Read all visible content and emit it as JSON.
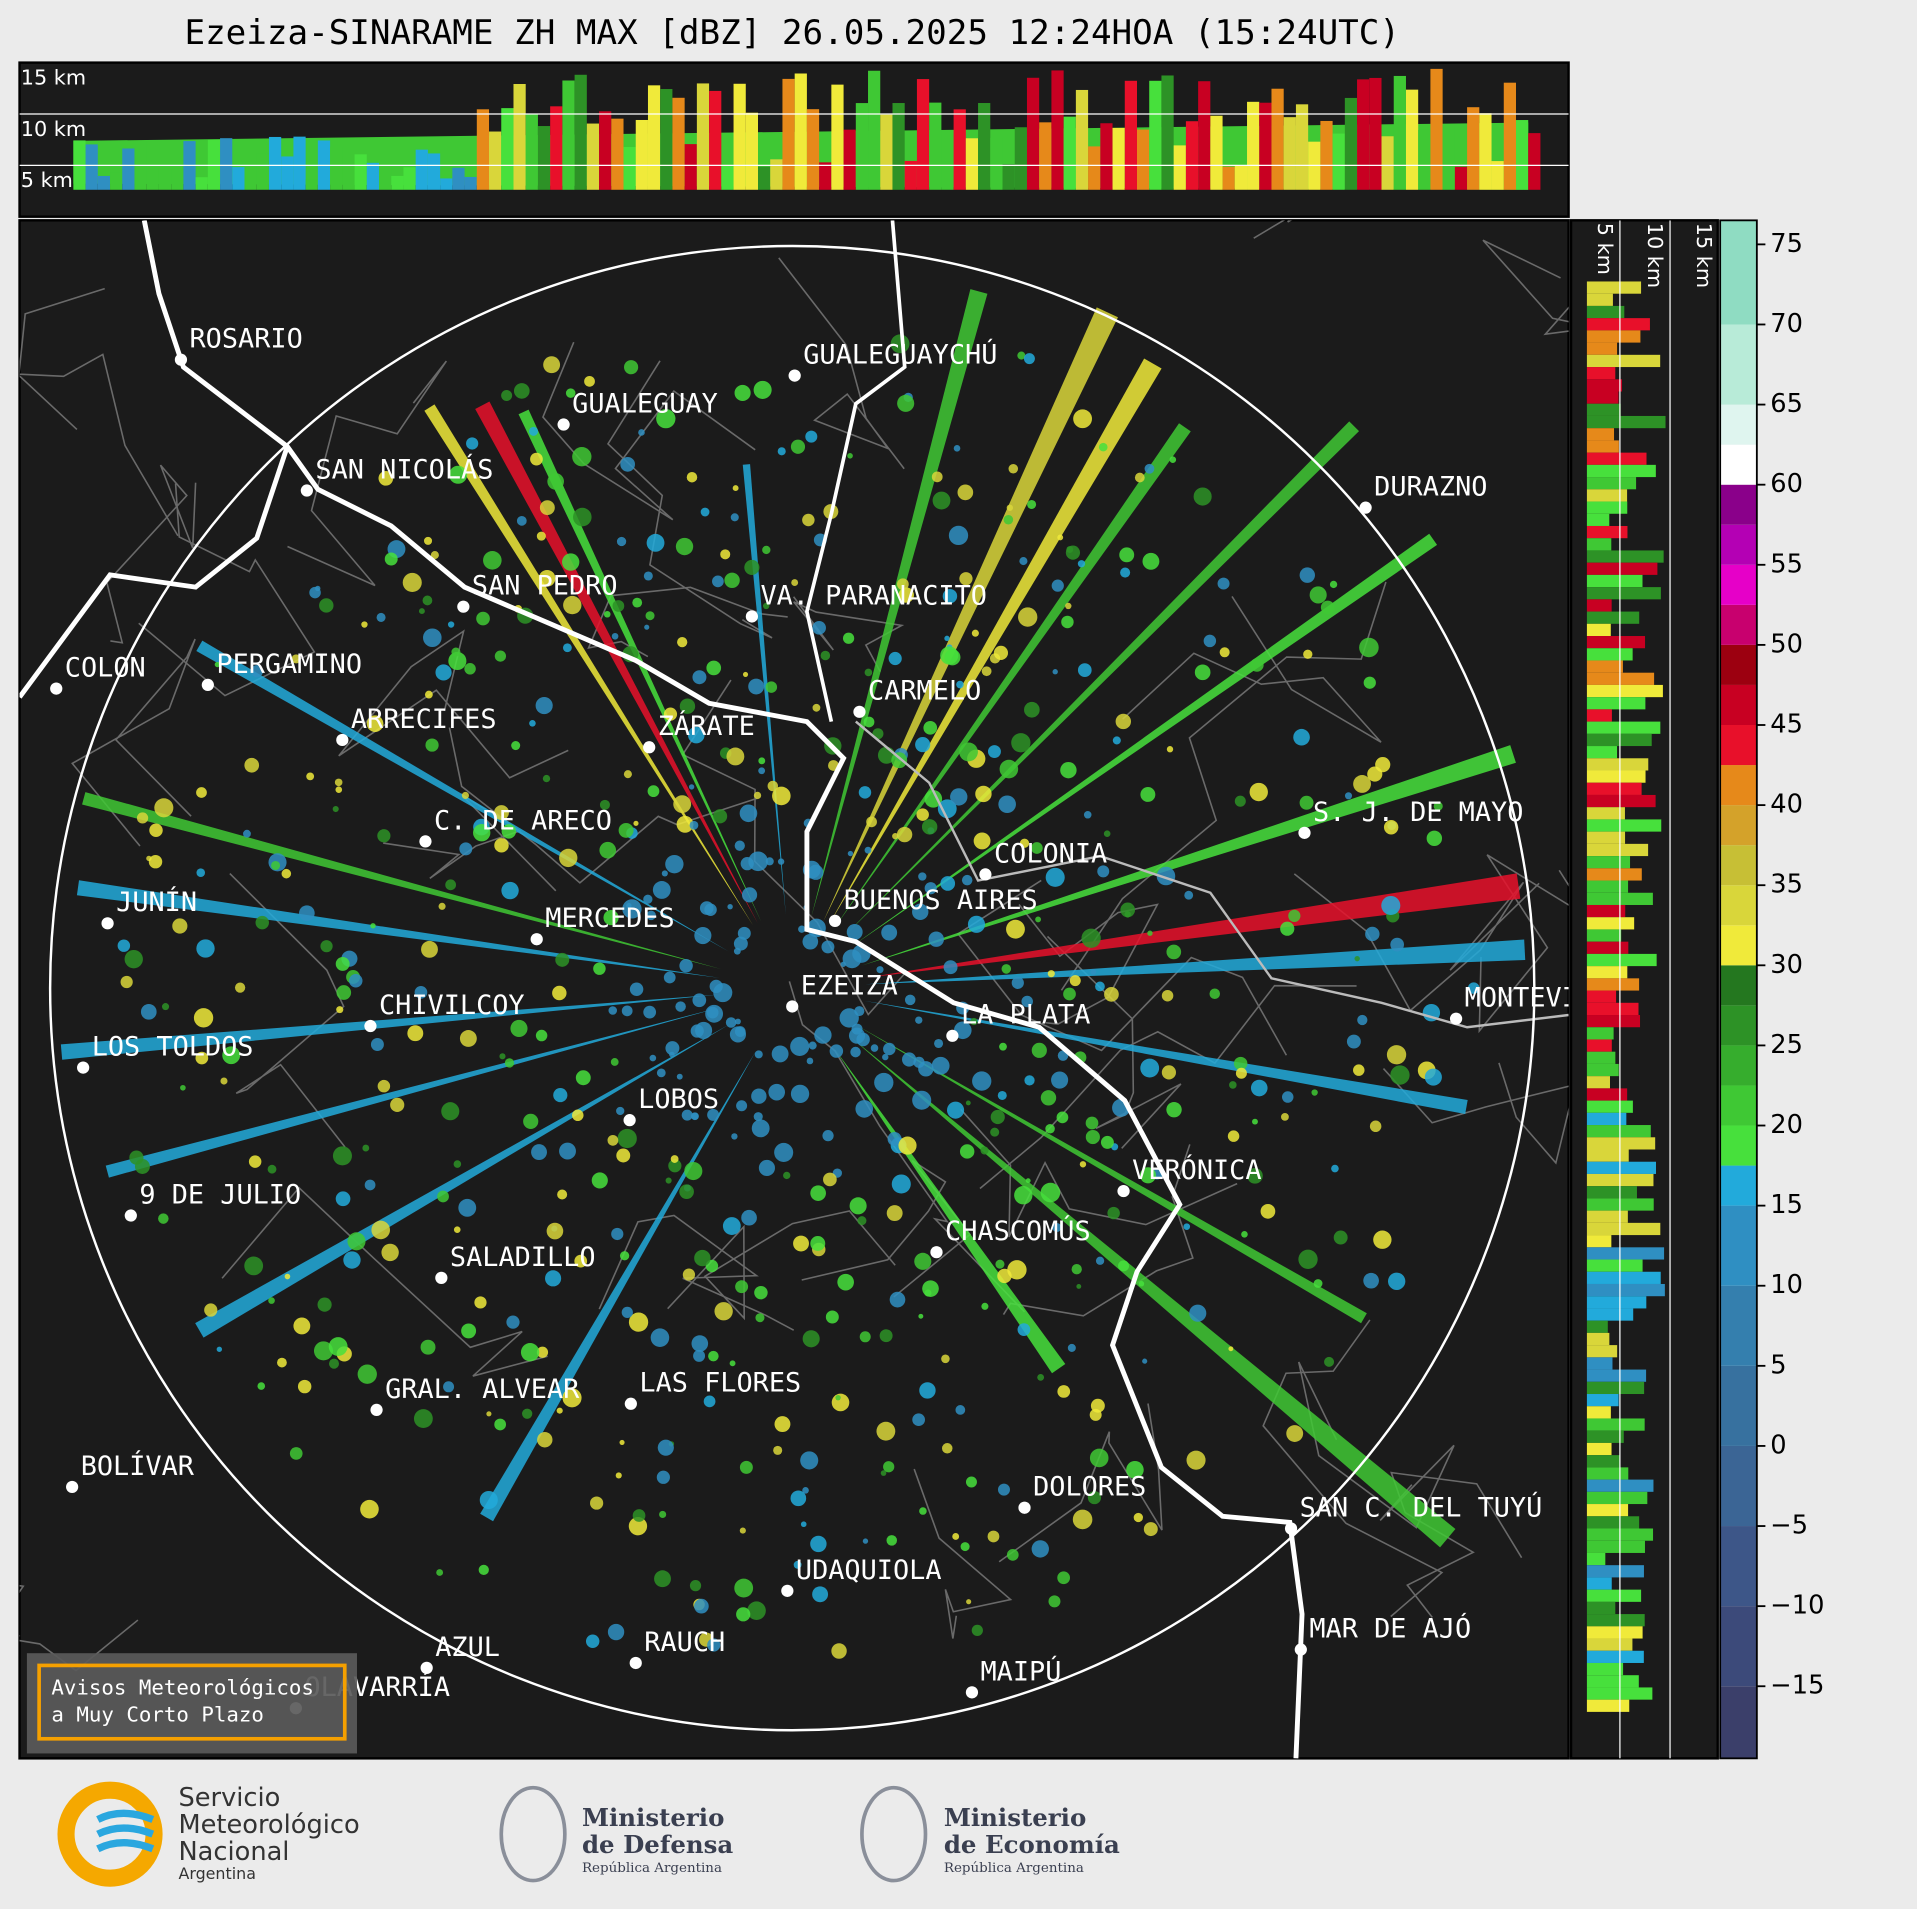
{
  "title": "Ezeiza-SINARAME ZH MAX [dBZ] 26.05.2025 12:24HOA (15:24UTC)",
  "top_panel": {
    "height_labels": [
      "15 km",
      "10 km",
      "5 km"
    ]
  },
  "side_panel": {
    "height_labels": [
      "5 km",
      "10 km",
      "15 km"
    ]
  },
  "cities": [
    "ROSARIO",
    "GUALEGUAYCHÚ",
    "GUALEGUAY",
    "SAN NICOLÁS",
    "DURAZNO",
    "SAN PEDRO",
    "VA. PARANACITO",
    "COLON",
    "PERGAMINO",
    "CARMELO",
    "ARRECIFES",
    "ZÁRATE",
    "S. J. DE MAYO",
    "C. DE ARECO",
    "COLONIA",
    "BUENOS AIRES",
    "JUNÍN",
    "MERCEDES",
    "EZEIZA",
    "MONTEVIDEO",
    "LA PLATA",
    "CHIVILCOY",
    "LOS TOLDOS",
    "LOBOS",
    "VERÓNICA",
    "9 DE JULIO",
    "CHASCOMÚS",
    "SALADILLO",
    "GRAL. ALVEAR",
    "LAS FLORES",
    "BOLÍVAR",
    "DOLORES",
    "SAN C. DEL TUYÚ",
    "UDAQUIOLA",
    "MAR DE AJÓ",
    "RAUCH",
    "AZUL",
    "OLAVARRÍA",
    "MAIPÚ"
  ],
  "colorbar": {
    "ylim": [
      -19.5,
      76.5
    ],
    "yticks": [
      {
        "value": -15,
        "label": "−15"
      },
      {
        "value": -10,
        "label": "−10"
      },
      {
        "value": -5,
        "label": "−5"
      },
      0,
      5,
      10,
      15,
      20,
      25,
      30,
      35,
      40,
      45,
      50,
      55,
      60,
      65,
      70,
      75
    ],
    "bins": [
      -19.5,
      -15,
      -10,
      -5,
      0,
      5,
      10,
      15,
      17.5,
      20,
      22.5,
      25,
      27.5,
      30,
      32.5,
      35,
      37.5,
      40,
      42.5,
      45,
      47.5,
      50,
      52.5,
      55,
      57.5,
      60,
      62.5,
      65,
      70,
      76.5
    ],
    "colors": [
      "#3b3f6a",
      "#3c4a7a",
      "#3d5688",
      "#3b6595",
      "#37719f",
      "#347fae",
      "#2f8fc2",
      "#22aadb",
      "#47e03c",
      "#3fc834",
      "#36ad2d",
      "#2d9226",
      "#24771f",
      "#f0ea3a",
      "#d9d63a",
      "#c7bf35",
      "#d4a22a",
      "#e6891a",
      "#e8102a",
      "#c80022",
      "#9c0010",
      "#c8006e",
      "#e600c8",
      "#b400b4",
      "#8a008a",
      "#ffffff",
      "#dff5ef",
      "#b8ebd8",
      "#8fdcc2"
    ]
  },
  "notice": {
    "lines": [
      "Avisos Meteorológicos",
      "a Muy Corto Plazo"
    ]
  },
  "logos": {
    "smn": [
      "Servicio",
      "Meteorológico",
      "Nacional",
      "Argentina"
    ],
    "defensa": [
      "Ministerio",
      "de Defensa",
      "República Argentina"
    ],
    "economia": [
      "Ministerio",
      "de Economía",
      "República Argentina"
    ]
  }
}
